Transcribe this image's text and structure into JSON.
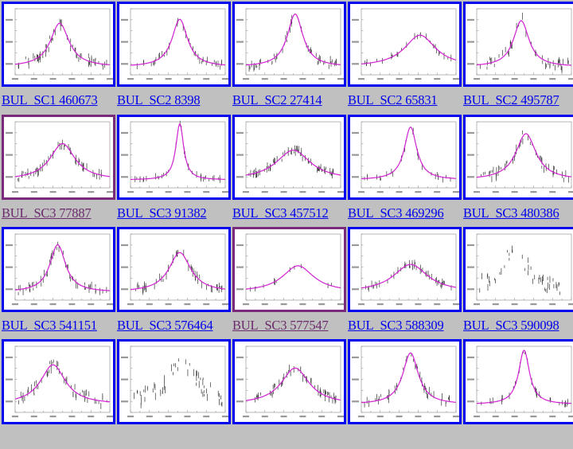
{
  "colors": {
    "link": "#0000ee",
    "visited": "#6b2a6b",
    "page_background": "#c0c0c0",
    "curve": "#d020d0",
    "points": "#333333"
  },
  "thumbnail_icon": "light-curve-plot-icon",
  "items": [
    {
      "label": "BUL_SC1 460673",
      "visited": false,
      "curve": "peak",
      "center": 0.47,
      "height": 0.66,
      "width": 0.12,
      "scatter": 0.1,
      "n_points": 60
    },
    {
      "label": "BUL_SC2 8398",
      "visited": false,
      "curve": "peak",
      "center": 0.52,
      "height": 0.72,
      "width": 0.1,
      "scatter": 0.06,
      "n_points": 40
    },
    {
      "label": "BUL_SC2 27414",
      "visited": false,
      "curve": "peak",
      "center": 0.52,
      "height": 0.8,
      "width": 0.1,
      "scatter": 0.08,
      "n_points": 50
    },
    {
      "label": "BUL_SC2 65831",
      "visited": false,
      "curve": "broad",
      "center": 0.62,
      "height": 0.48,
      "width": 0.2,
      "scatter": 0.04,
      "n_points": 30
    },
    {
      "label": "BUL_SC2 495787",
      "visited": false,
      "curve": "peak",
      "center": 0.47,
      "height": 0.7,
      "width": 0.1,
      "scatter": 0.1,
      "n_points": 45
    },
    {
      "label": "BUL_SC3 77887",
      "visited": true,
      "curve": "peak",
      "center": 0.5,
      "height": 0.55,
      "width": 0.16,
      "scatter": 0.07,
      "n_points": 60
    },
    {
      "label": "BUL_SC3 91382",
      "visited": false,
      "curve": "peak",
      "center": 0.52,
      "height": 0.85,
      "width": 0.05,
      "scatter": 0.03,
      "n_points": 35
    },
    {
      "label": "BUL_SC3 457512",
      "visited": false,
      "curve": "broad",
      "center": 0.5,
      "height": 0.45,
      "width": 0.22,
      "scatter": 0.07,
      "n_points": 70
    },
    {
      "label": "BUL_SC3 469296",
      "visited": false,
      "curve": "peak",
      "center": 0.52,
      "height": 0.8,
      "width": 0.08,
      "scatter": 0.05,
      "n_points": 25
    },
    {
      "label": "BUL_SC3 480386",
      "visited": false,
      "curve": "peak",
      "center": 0.52,
      "height": 0.7,
      "width": 0.13,
      "scatter": 0.09,
      "n_points": 55
    },
    {
      "label": "BUL_SC3 541151",
      "visited": false,
      "curve": "peak",
      "center": 0.45,
      "height": 0.72,
      "width": 0.1,
      "scatter": 0.08,
      "n_points": 55
    },
    {
      "label": "BUL_SC3 576464",
      "visited": false,
      "curve": "peak",
      "center": 0.52,
      "height": 0.6,
      "width": 0.14,
      "scatter": 0.07,
      "n_points": 60
    },
    {
      "label": "BUL_SC3 577547",
      "visited": true,
      "curve": "broad",
      "center": 0.55,
      "height": 0.4,
      "width": 0.2,
      "scatter": 0.03,
      "n_points": 12
    },
    {
      "label": "BUL_SC3 588309",
      "visited": false,
      "curve": "broad",
      "center": 0.52,
      "height": 0.42,
      "width": 0.22,
      "scatter": 0.05,
      "n_points": 50
    },
    {
      "label": "BUL_SC3 590098",
      "visited": false,
      "curve": "none",
      "center": 0.4,
      "height": 0.6,
      "width": 0.18,
      "scatter": 0.15,
      "n_points": 45
    },
    {
      "label": "",
      "visited": false,
      "curve": "peak",
      "center": 0.4,
      "height": 0.6,
      "width": 0.16,
      "scatter": 0.1,
      "n_points": 55
    },
    {
      "label": "",
      "visited": false,
      "curve": "none",
      "center": 0.55,
      "height": 0.65,
      "width": 0.18,
      "scatter": 0.16,
      "n_points": 55
    },
    {
      "label": "",
      "visited": false,
      "curve": "peak",
      "center": 0.52,
      "height": 0.55,
      "width": 0.18,
      "scatter": 0.08,
      "n_points": 60
    },
    {
      "label": "",
      "visited": false,
      "curve": "peak",
      "center": 0.52,
      "height": 0.78,
      "width": 0.1,
      "scatter": 0.08,
      "n_points": 50
    },
    {
      "label": "",
      "visited": false,
      "curve": "peak",
      "center": 0.5,
      "height": 0.82,
      "width": 0.07,
      "scatter": 0.04,
      "n_points": 35
    }
  ]
}
